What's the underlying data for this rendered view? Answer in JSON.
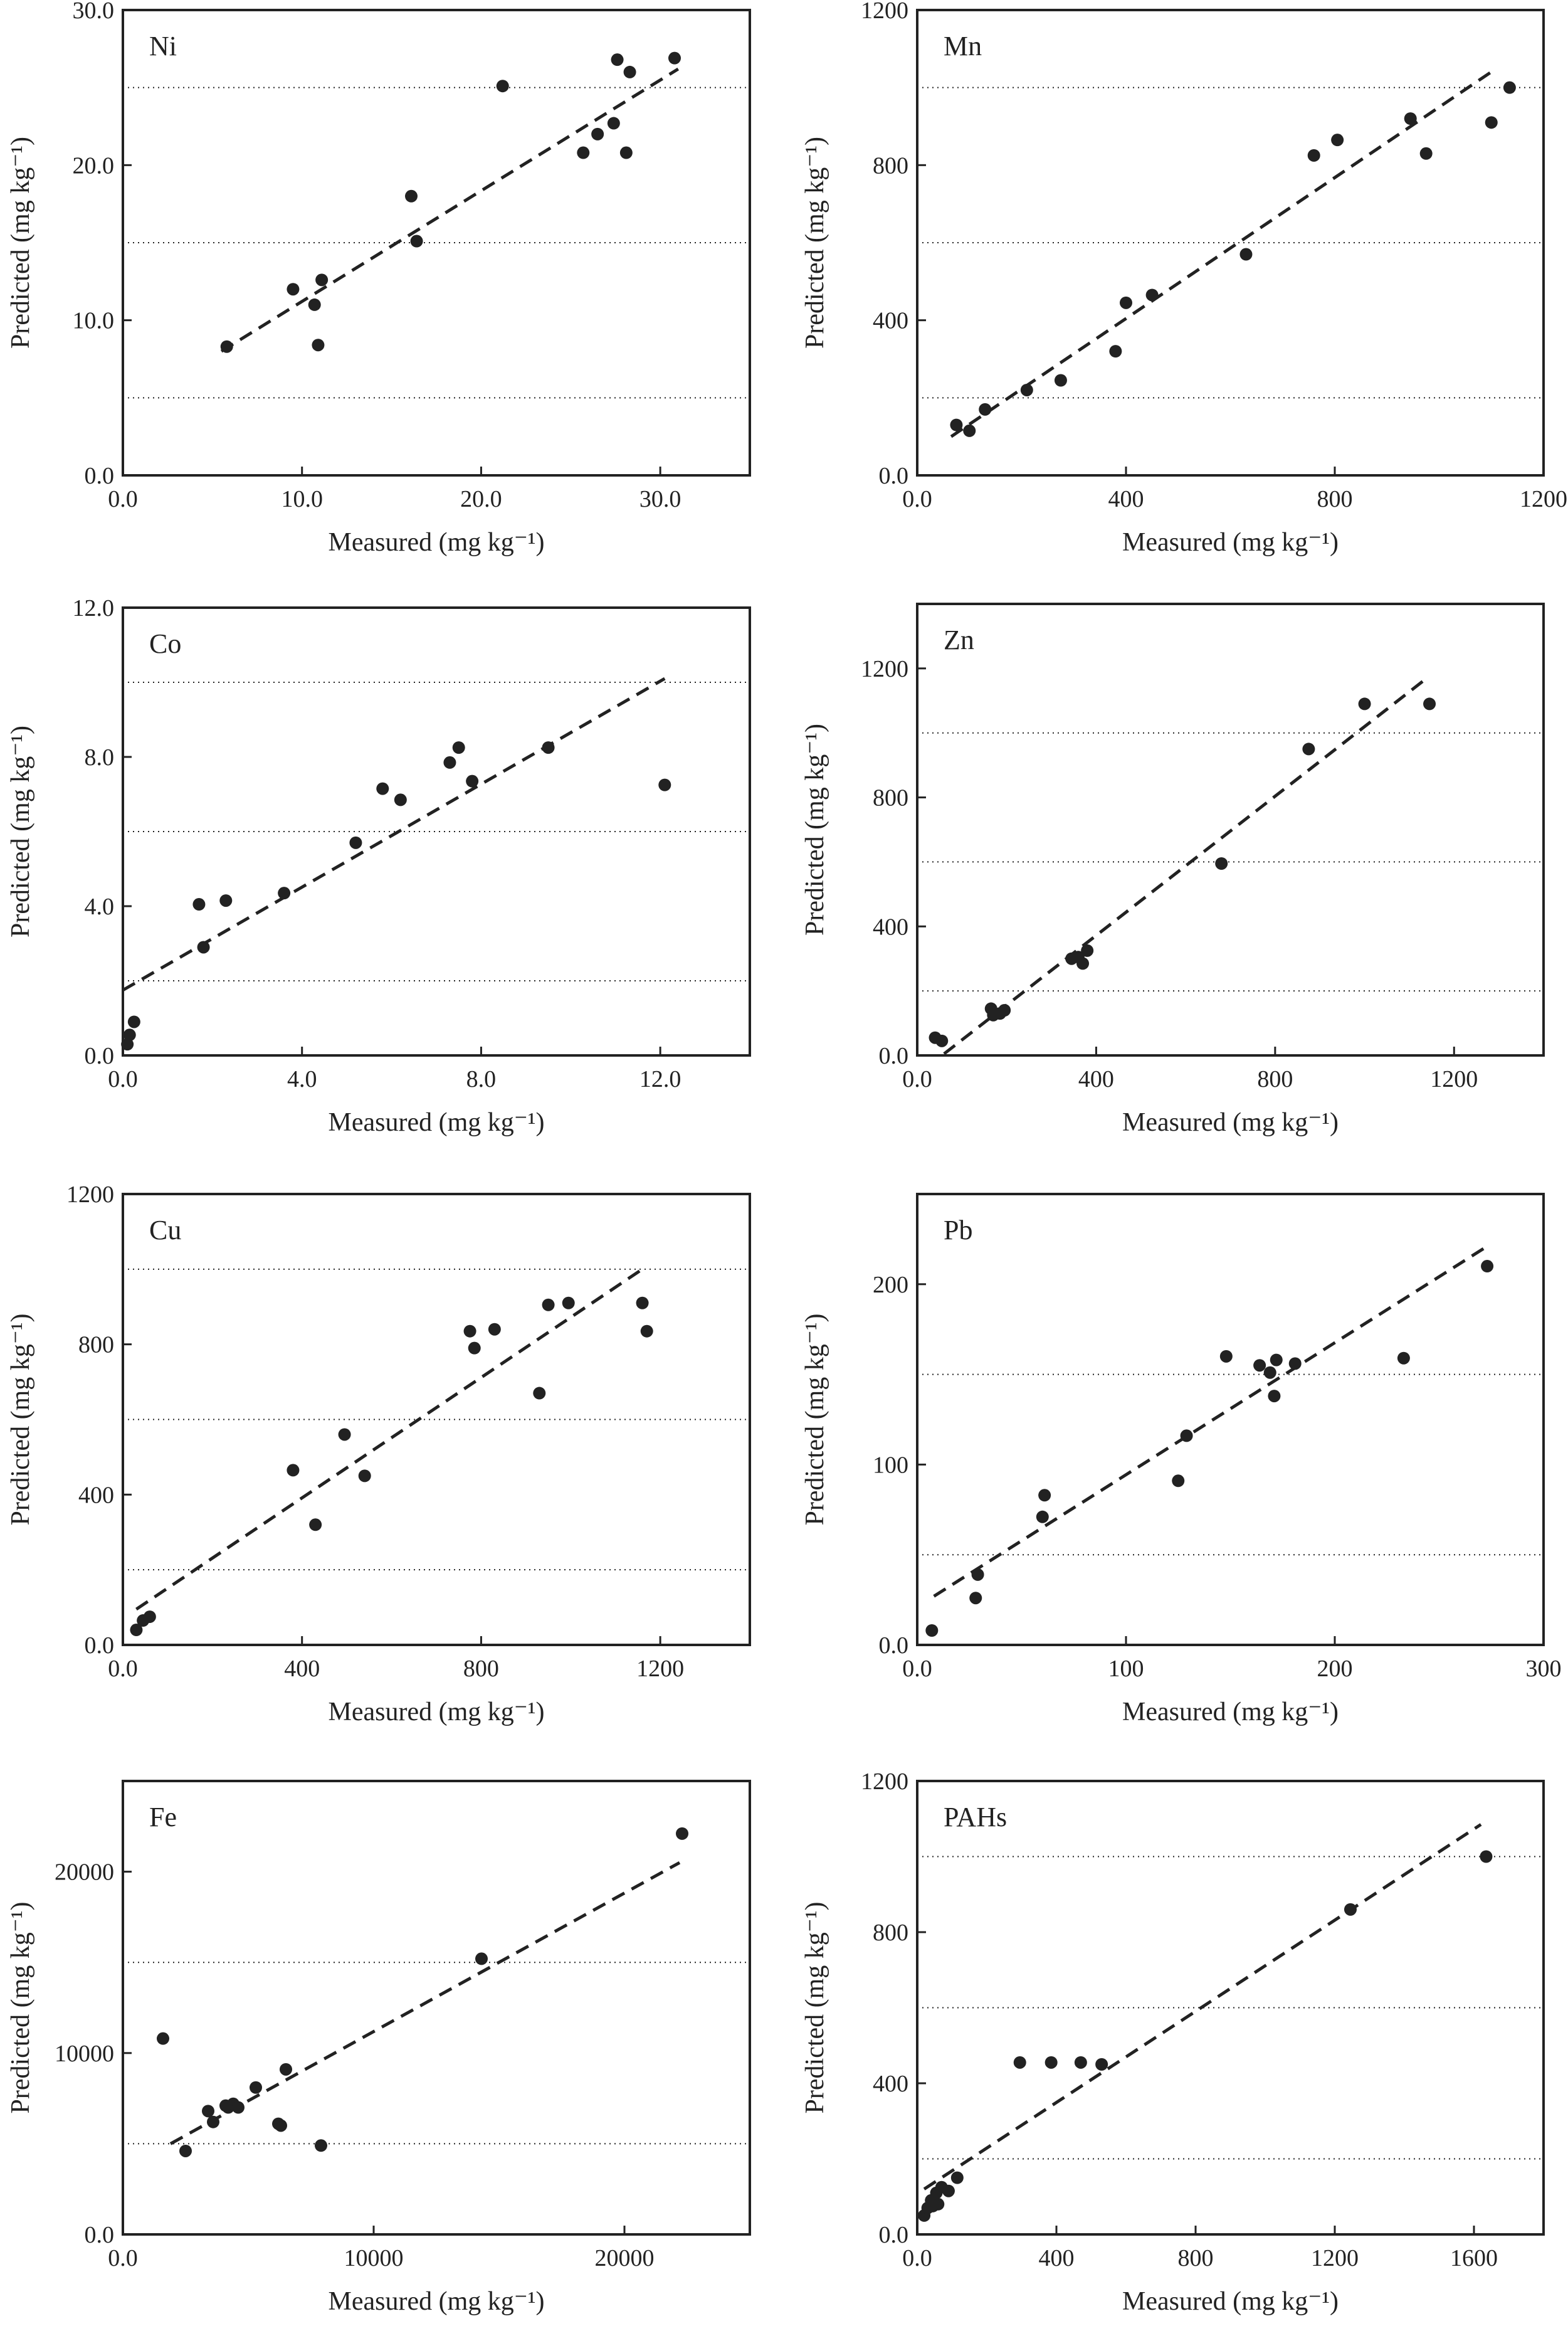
{
  "chart_data": [
    {
      "type": "scatter",
      "label": "Ni",
      "xlabel": "Measured (mg kg⁻¹)",
      "ylabel": "Predicted (mg kg⁻¹)",
      "xlim": [
        0,
        35
      ],
      "ylim": [
        0,
        30
      ],
      "xticks": [
        0,
        10,
        20,
        30
      ],
      "xtick_labels": [
        "0.0",
        "10.0",
        "20.0",
        "30.0"
      ],
      "yticks": [
        0,
        10,
        20,
        30
      ],
      "ytick_labels": [
        "0.0",
        "10.0",
        "20.0",
        "30.0"
      ],
      "grid_y": [
        5,
        15,
        25
      ],
      "fit": {
        "x": [
          5.5,
          31
        ],
        "y": [
          8.0,
          26.2
        ]
      },
      "points": [
        [
          5.8,
          8.3
        ],
        [
          9.5,
          12.0
        ],
        [
          10.7,
          11.0
        ],
        [
          10.9,
          8.4
        ],
        [
          11.1,
          12.6
        ],
        [
          16.1,
          18.0
        ],
        [
          16.4,
          15.1
        ],
        [
          21.2,
          25.1
        ],
        [
          25.7,
          20.8
        ],
        [
          26.5,
          22.0
        ],
        [
          27.4,
          22.7
        ],
        [
          27.6,
          26.8
        ],
        [
          28.1,
          20.8
        ],
        [
          28.3,
          26.0
        ],
        [
          30.8,
          26.9
        ]
      ]
    },
    {
      "type": "scatter",
      "label": "Mn",
      "xlabel": "Measured (mg kg⁻¹)",
      "ylabel": "Predicted (mg kg⁻¹)",
      "xlim": [
        0,
        1200
      ],
      "ylim": [
        0,
        1200
      ],
      "xticks": [
        0,
        400,
        800,
        1200
      ],
      "xtick_labels": [
        "0.0",
        "400",
        "800",
        "1200"
      ],
      "yticks": [
        0,
        400,
        800,
        1200
      ],
      "ytick_labels": [
        "0.0",
        "400",
        "800",
        "1200"
      ],
      "grid_y": [
        200,
        600,
        1000
      ],
      "fit": {
        "x": [
          65,
          1105
        ],
        "y": [
          100,
          1045
        ]
      },
      "points": [
        [
          75,
          130
        ],
        [
          100,
          115
        ],
        [
          130,
          170
        ],
        [
          210,
          220
        ],
        [
          275,
          245
        ],
        [
          380,
          320
        ],
        [
          400,
          445
        ],
        [
          450,
          465
        ],
        [
          630,
          570
        ],
        [
          760,
          825
        ],
        [
          805,
          865
        ],
        [
          945,
          920
        ],
        [
          975,
          830
        ],
        [
          1100,
          910
        ],
        [
          1135,
          1000
        ]
      ]
    },
    {
      "type": "scatter",
      "label": "Co",
      "xlabel": "Measured (mg kg⁻¹)",
      "ylabel": "Predicted (mg kg⁻¹)",
      "xlim": [
        0,
        14
      ],
      "ylim": [
        0,
        12
      ],
      "xticks": [
        0,
        4,
        8,
        12
      ],
      "xtick_labels": [
        "0.0",
        "4.0",
        "8.0",
        "12.0"
      ],
      "yticks": [
        0,
        4,
        8,
        12
      ],
      "ytick_labels": [
        "0.0",
        "4.0",
        "8.0",
        "12.0"
      ],
      "grid_y": [
        2,
        6,
        10
      ],
      "fit": {
        "x": [
          0,
          12.1
        ],
        "y": [
          1.75,
          10.1
        ]
      },
      "points": [
        [
          0.1,
          0.3
        ],
        [
          0.15,
          0.55
        ],
        [
          0.25,
          0.9
        ],
        [
          1.7,
          4.05
        ],
        [
          1.8,
          2.9
        ],
        [
          2.3,
          4.15
        ],
        [
          3.6,
          4.35
        ],
        [
          5.2,
          5.7
        ],
        [
          5.8,
          7.15
        ],
        [
          6.2,
          6.85
        ],
        [
          7.3,
          7.85
        ],
        [
          7.5,
          8.25
        ],
        [
          7.8,
          7.35
        ],
        [
          9.5,
          8.25
        ],
        [
          12.1,
          7.25
        ]
      ]
    },
    {
      "type": "scatter",
      "label": "Zn",
      "xlabel": "Measured (mg kg⁻¹)",
      "ylabel": "Predicted (mg kg⁻¹)",
      "xlim": [
        0,
        1400
      ],
      "ylim": [
        0,
        1400
      ],
      "xticks": [
        0,
        400,
        800,
        1200
      ],
      "xtick_labels": [
        "0.0",
        "400",
        "800",
        "1200"
      ],
      "yticks": [
        0,
        400,
        800,
        1200
      ],
      "ytick_labels": [
        "0.0",
        "400",
        "800",
        "1200"
      ],
      "grid_y": [
        200,
        600,
        1000
      ],
      "fit": {
        "x": [
          60,
          1130
        ],
        "y": [
          5,
          1160
        ]
      },
      "points": [
        [
          40,
          55
        ],
        [
          55,
          45
        ],
        [
          165,
          145
        ],
        [
          170,
          125
        ],
        [
          185,
          130
        ],
        [
          195,
          140
        ],
        [
          345,
          300
        ],
        [
          360,
          305
        ],
        [
          370,
          285
        ],
        [
          380,
          325
        ],
        [
          680,
          595
        ],
        [
          875,
          950
        ],
        [
          1000,
          1090
        ],
        [
          1145,
          1090
        ]
      ]
    },
    {
      "type": "scatter",
      "label": "Cu",
      "xlabel": "Measured (mg kg⁻¹)",
      "ylabel": "Predicted (mg kg⁻¹)",
      "xlim": [
        0,
        1400
      ],
      "ylim": [
        0,
        1200
      ],
      "xticks": [
        0,
        400,
        800,
        1200
      ],
      "xtick_labels": [
        "0.0",
        "400",
        "800",
        "1200"
      ],
      "yticks": [
        0,
        400,
        800,
        1200
      ],
      "ytick_labels": [
        "0.0",
        "400",
        "800",
        "1200"
      ],
      "grid_y": [
        200,
        600,
        1000
      ],
      "fit": {
        "x": [
          30,
          1160
        ],
        "y": [
          95,
          1000
        ]
      },
      "points": [
        [
          30,
          40
        ],
        [
          45,
          65
        ],
        [
          60,
          75
        ],
        [
          380,
          465
        ],
        [
          430,
          320
        ],
        [
          495,
          560
        ],
        [
          540,
          450
        ],
        [
          775,
          835
        ],
        [
          785,
          790
        ],
        [
          830,
          840
        ],
        [
          930,
          670
        ],
        [
          950,
          905
        ],
        [
          995,
          910
        ],
        [
          1160,
          910
        ],
        [
          1170,
          835
        ]
      ]
    },
    {
      "type": "scatter",
      "label": "Pb",
      "xlabel": "Measured (mg kg⁻¹)",
      "ylabel": "Predicted (mg kg⁻¹)",
      "xlim": [
        0,
        300
      ],
      "ylim": [
        0,
        250
      ],
      "xticks": [
        0,
        100,
        200,
        300
      ],
      "xtick_labels": [
        "0.0",
        "100",
        "200",
        "300"
      ],
      "yticks": [
        0,
        100,
        200
      ],
      "ytick_labels": [
        "0.0",
        "100",
        "200"
      ],
      "grid_y": [
        50,
        150
      ],
      "fit": {
        "x": [
          8,
          273
        ],
        "y": [
          27,
          221
        ]
      },
      "points": [
        [
          7,
          8
        ],
        [
          28,
          26
        ],
        [
          29,
          39
        ],
        [
          60,
          71
        ],
        [
          61,
          83
        ],
        [
          125,
          91
        ],
        [
          129,
          116
        ],
        [
          148,
          160
        ],
        [
          164,
          155
        ],
        [
          169,
          151
        ],
        [
          171,
          138
        ],
        [
          172,
          158
        ],
        [
          181,
          156
        ],
        [
          233,
          159
        ],
        [
          273,
          210
        ]
      ]
    },
    {
      "type": "scatter",
      "label": "Fe",
      "xlabel": "Measured (mg kg⁻¹)",
      "ylabel": "Predicted (mg kg⁻¹)",
      "xlim": [
        0,
        25000
      ],
      "ylim": [
        0,
        25000
      ],
      "xticks": [
        0,
        10000,
        20000
      ],
      "xtick_labels": [
        "0.0",
        "10000",
        "20000"
      ],
      "yticks": [
        0,
        10000,
        20000
      ],
      "ytick_labels": [
        "0.0",
        "10000",
        "20000"
      ],
      "grid_y": [
        5000,
        15000
      ],
      "fit": {
        "x": [
          1900,
          22200
        ],
        "y": [
          5000,
          20500
        ]
      },
      "points": [
        [
          1600,
          10800
        ],
        [
          2500,
          4600
        ],
        [
          3400,
          6800
        ],
        [
          3600,
          6200
        ],
        [
          4100,
          7100
        ],
        [
          4200,
          7000
        ],
        [
          4400,
          7200
        ],
        [
          4600,
          7000
        ],
        [
          5300,
          8100
        ],
        [
          6200,
          6100
        ],
        [
          6300,
          6000
        ],
        [
          6500,
          9100
        ],
        [
          7900,
          4900
        ],
        [
          14300,
          15200
        ],
        [
          22300,
          22100
        ]
      ]
    },
    {
      "type": "scatter",
      "label": "PAHs",
      "xlabel": "Measured (mg kg⁻¹)",
      "ylabel": "Predicted (mg kg⁻¹)",
      "xlim": [
        0,
        1800
      ],
      "ylim": [
        0,
        1200
      ],
      "xticks": [
        0,
        400,
        800,
        1200,
        1600
      ],
      "xtick_labels": [
        "0.0",
        "400",
        "800",
        "1200",
        "1600"
      ],
      "yticks": [
        0,
        400,
        800,
        1200
      ],
      "ytick_labels": [
        "0.0",
        "400",
        "800",
        "1200"
      ],
      "grid_y": [
        200,
        600,
        1000
      ],
      "fit": {
        "x": [
          20,
          1620
        ],
        "y": [
          120,
          1085
        ]
      },
      "points": [
        [
          20,
          50
        ],
        [
          30,
          70
        ],
        [
          40,
          90
        ],
        [
          45,
          75
        ],
        [
          55,
          110
        ],
        [
          60,
          80
        ],
        [
          70,
          125
        ],
        [
          90,
          115
        ],
        [
          115,
          150
        ],
        [
          295,
          455
        ],
        [
          385,
          455
        ],
        [
          470,
          455
        ],
        [
          530,
          450
        ],
        [
          1245,
          860
        ],
        [
          1635,
          1000
        ]
      ]
    }
  ]
}
